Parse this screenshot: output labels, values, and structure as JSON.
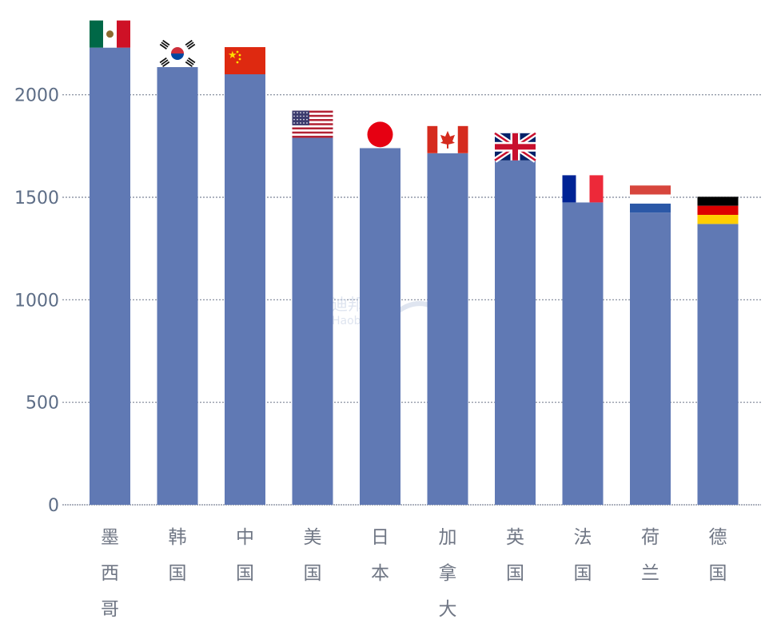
{
  "chart_data": {
    "type": "bar",
    "title": "",
    "xlabel": "",
    "ylabel": "",
    "ylim": [
      0,
      2400
    ],
    "yticks": [
      0,
      500,
      1000,
      1500,
      2000
    ],
    "grid": true,
    "bar_color": "#6079b4",
    "categories": [
      "墨西哥",
      "韩国",
      "中国",
      "美国",
      "日本",
      "加拿大",
      "英国",
      "法国",
      "荷兰",
      "德国"
    ],
    "values": [
      2230,
      2135,
      2100,
      1790,
      1740,
      1715,
      1680,
      1475,
      1425,
      1370
    ],
    "flags": [
      "mexico-flag",
      "south-korea-flag",
      "china-flag",
      "usa-flag",
      "japan-flag",
      "canada-flag",
      "uk-flag",
      "france-flag",
      "netherlands-flag",
      "germany-flag"
    ]
  },
  "watermark": {
    "text": "迪邦边",
    "sub": "Haobian"
  }
}
